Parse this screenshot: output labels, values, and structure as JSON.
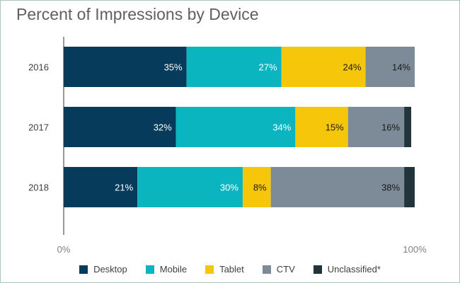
{
  "chart_data": {
    "type": "bar",
    "orientation": "horizontal",
    "stacked": true,
    "title": "Percent of Impressions by Device",
    "categories": [
      "2016",
      "2017",
      "2018"
    ],
    "series": [
      {
        "name": "Desktop",
        "color": "#073b5c",
        "values": [
          35,
          32,
          21
        ],
        "labels": [
          "35%",
          "32%",
          "21%"
        ],
        "label_color": "#ffffff"
      },
      {
        "name": "Mobile",
        "color": "#0bb5c0",
        "values": [
          27,
          34,
          30
        ],
        "labels": [
          "27%",
          "34%",
          "30%"
        ],
        "label_color": "#ffffff"
      },
      {
        "name": "Tablet",
        "color": "#f5c60a",
        "values": [
          24,
          15,
          8
        ],
        "labels": [
          "24%",
          "15%",
          "8%"
        ],
        "label_color": "#1a1a1a"
      },
      {
        "name": "CTV",
        "color": "#7c8b97",
        "values": [
          14,
          16,
          38
        ],
        "labels": [
          "14%",
          "16%",
          "38%"
        ],
        "label_color": "#1a1a1a"
      },
      {
        "name": "Unclassified*",
        "color": "#21333b",
        "values": [
          0,
          2,
          3
        ],
        "labels": [
          "",
          "",
          ""
        ],
        "label_color": "#ffffff"
      }
    ],
    "x_tick_labels": [
      "0%",
      "100%"
    ],
    "xlim": [
      0,
      100
    ],
    "grid": false,
    "legend_position": "bottom"
  }
}
